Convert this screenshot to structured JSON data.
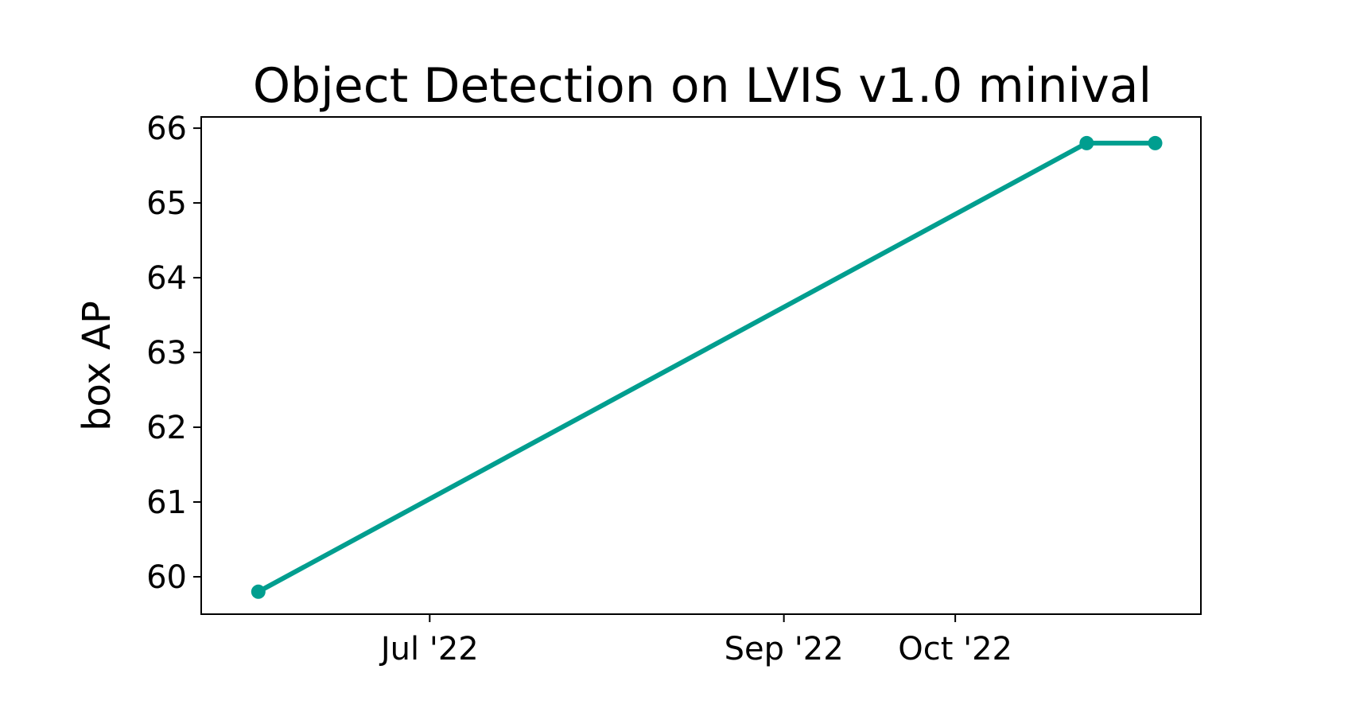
{
  "chart_data": {
    "type": "line",
    "title": "Object Detection on LVIS v1.0 minival",
    "xlabel": "",
    "ylabel": "box AP",
    "xlim": [
      "2022-05-22",
      "2022-11-13"
    ],
    "ylim": [
      59.5,
      66.15
    ],
    "x_ticks": [
      {
        "date": "2022-07-01",
        "label": "Jul '22"
      },
      {
        "date": "2022-09-01",
        "label": "Sep '22"
      },
      {
        "date": "2022-10-01",
        "label": "Oct '22"
      }
    ],
    "y_ticks": [
      60,
      61,
      62,
      63,
      64,
      65,
      66
    ],
    "series": [
      {
        "color": "#009e8f",
        "points": [
          {
            "x": "2022-06-01",
            "y": 59.8
          },
          {
            "x": "2022-10-24",
            "y": 65.8
          },
          {
            "x": "2022-11-05",
            "y": 65.8
          }
        ]
      }
    ],
    "grid": false,
    "legend": "none"
  }
}
